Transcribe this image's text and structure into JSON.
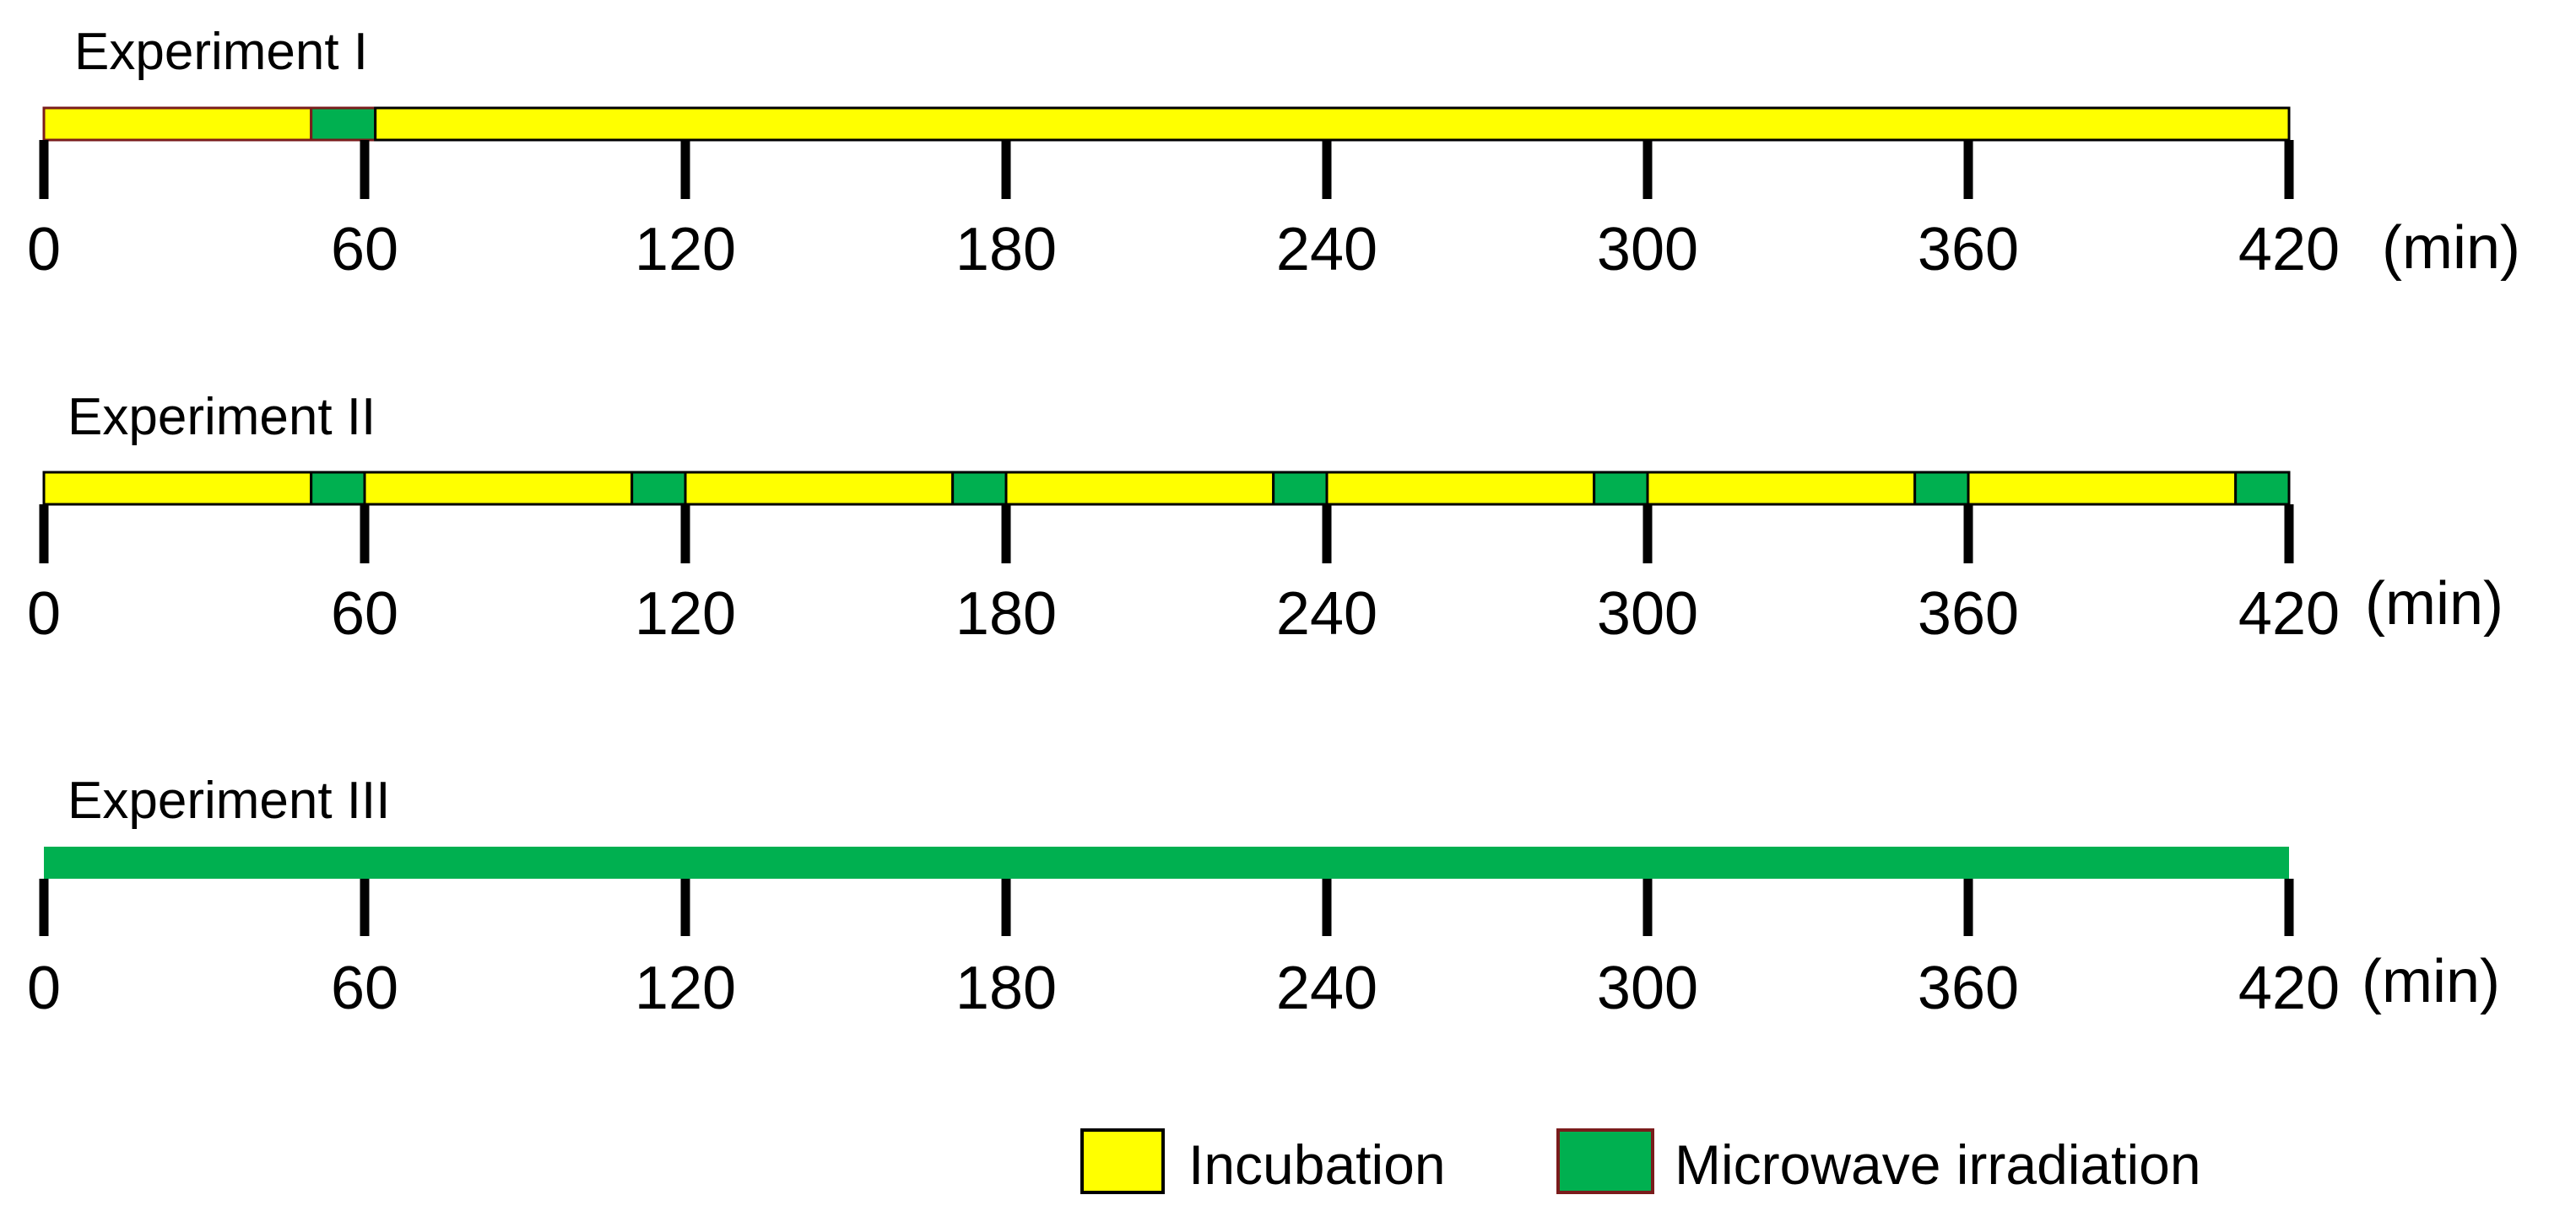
{
  "unit_label": "(min)",
  "colors": {
    "incubation": "#ffff00",
    "microwave": "#00b050",
    "outline": "#7a1c1c",
    "tick": "#000000"
  },
  "ticks": [
    "0",
    "60",
    "120",
    "180",
    "240",
    "300",
    "360",
    "420"
  ],
  "experiments": [
    {
      "title": "Experiment I",
      "segments": [
        {
          "type": "incubation",
          "start": 0,
          "end": 50
        },
        {
          "type": "microwave",
          "start": 50,
          "end": 62
        },
        {
          "type": "incubation",
          "start": 62,
          "end": 420
        }
      ]
    },
    {
      "title": "Experiment II",
      "segments": [
        {
          "type": "incubation",
          "start": 0,
          "end": 50
        },
        {
          "type": "microwave",
          "start": 50,
          "end": 60
        },
        {
          "type": "incubation",
          "start": 60,
          "end": 110
        },
        {
          "type": "microwave",
          "start": 110,
          "end": 120
        },
        {
          "type": "incubation",
          "start": 120,
          "end": 170
        },
        {
          "type": "microwave",
          "start": 170,
          "end": 180
        },
        {
          "type": "incubation",
          "start": 180,
          "end": 230
        },
        {
          "type": "microwave",
          "start": 230,
          "end": 240
        },
        {
          "type": "incubation",
          "start": 240,
          "end": 290
        },
        {
          "type": "microwave",
          "start": 290,
          "end": 300
        },
        {
          "type": "incubation",
          "start": 300,
          "end": 350
        },
        {
          "type": "microwave",
          "start": 350,
          "end": 360
        },
        {
          "type": "incubation",
          "start": 360,
          "end": 410
        },
        {
          "type": "microwave",
          "start": 410,
          "end": 420
        }
      ]
    },
    {
      "title": "Experiment III",
      "segments": [
        {
          "type": "microwave",
          "start": 0,
          "end": 420
        }
      ]
    }
  ],
  "legend": [
    {
      "type": "incubation",
      "label": "Incubation"
    },
    {
      "type": "microwave",
      "label": "Microwave irradiation"
    }
  ]
}
